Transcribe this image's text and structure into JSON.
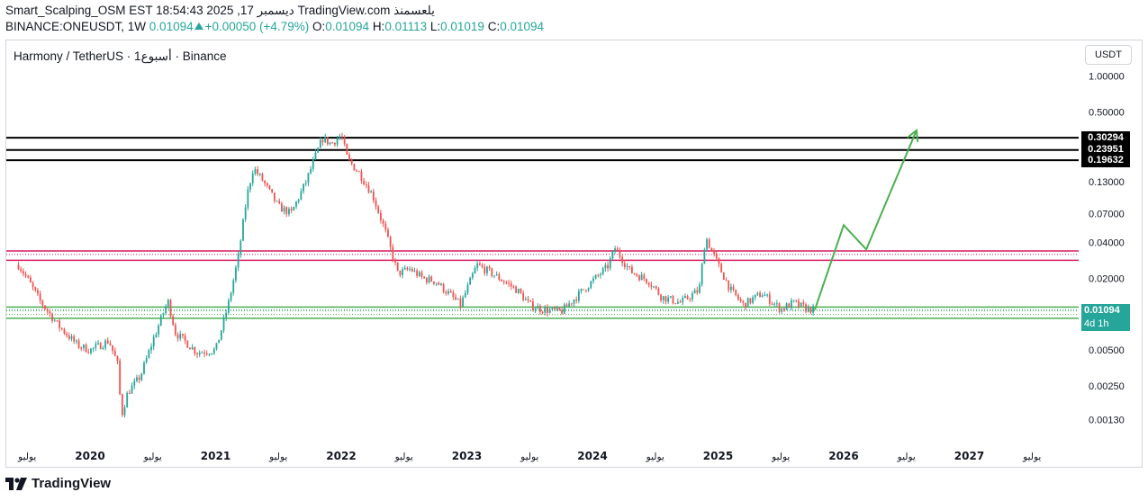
{
  "header": {
    "line1": "Smart_Scalping_OSM EST 18:54:43 2025 ,17 ديسمبر TradingView.com يلعسمنذ",
    "symbol": "BINANCE:ONEUSDT, 1W",
    "last": "0.01094",
    "change": "+0.00050 (+4.79%)",
    "o_label": "O:",
    "o_value": "0.01094",
    "h_label": "H:",
    "h_value": "0.01113",
    "l_label": "L:",
    "l_value": "0.01019",
    "c_label": "C:",
    "c_value": "0.01094"
  },
  "legend": "Harmony / TetherUS · 1أسبوع · Binance",
  "currency": "USDT",
  "brand": "TradingView",
  "colors": {
    "up": "#26a69a",
    "down": "#ef5350",
    "resistance": "#000000",
    "zone_red": "#d81b60",
    "zone_green": "#4caf50",
    "projection": "#4caf50"
  },
  "chart_data": {
    "type": "candlestick",
    "scale": "log",
    "ylim": [
      0.001,
      1.3
    ],
    "y_ticks": [
      "1.00000",
      "0.50000",
      "0.13000",
      "0.07000",
      "0.04000",
      "0.02000",
      "0.00500",
      "0.00250",
      "0.00130"
    ],
    "y_tick_values": [
      1.0,
      0.5,
      0.13,
      0.07,
      0.04,
      0.02,
      0.005,
      0.0025,
      0.0013
    ],
    "x_range": [
      "2019-06",
      "2027-12"
    ],
    "x_labels": [
      {
        "t": 2019.5,
        "label": "يوليو"
      },
      {
        "t": 2020.0,
        "label": "2020"
      },
      {
        "t": 2020.5,
        "label": "يوليو"
      },
      {
        "t": 2021.0,
        "label": "2021"
      },
      {
        "t": 2021.5,
        "label": "يوليو"
      },
      {
        "t": 2022.0,
        "label": "2022"
      },
      {
        "t": 2022.5,
        "label": "يوليو"
      },
      {
        "t": 2023.0,
        "label": "2023"
      },
      {
        "t": 2023.5,
        "label": "يوليو"
      },
      {
        "t": 2024.0,
        "label": "2024"
      },
      {
        "t": 2024.5,
        "label": "يوليو"
      },
      {
        "t": 2025.0,
        "label": "2025"
      },
      {
        "t": 2025.5,
        "label": "يوليو"
      },
      {
        "t": 2026.0,
        "label": "2026"
      },
      {
        "t": 2026.5,
        "label": "يوليو"
      },
      {
        "t": 2027.0,
        "label": "2027"
      },
      {
        "t": 2027.5,
        "label": "يوليو"
      }
    ],
    "price_path": [
      [
        2019.43,
        0.026
      ],
      [
        2019.5,
        0.02
      ],
      [
        2019.6,
        0.013
      ],
      [
        2019.75,
        0.008
      ],
      [
        2019.9,
        0.0055
      ],
      [
        2020.0,
        0.005
      ],
      [
        2020.15,
        0.006
      ],
      [
        2020.22,
        0.0038
      ],
      [
        2020.25,
        0.0014
      ],
      [
        2020.3,
        0.0022
      ],
      [
        2020.4,
        0.003
      ],
      [
        2020.5,
        0.006
      ],
      [
        2020.62,
        0.013
      ],
      [
        2020.68,
        0.007
      ],
      [
        2020.85,
        0.0048
      ],
      [
        2021.0,
        0.005
      ],
      [
        2021.1,
        0.012
      ],
      [
        2021.18,
        0.03
      ],
      [
        2021.25,
        0.1
      ],
      [
        2021.3,
        0.17
      ],
      [
        2021.38,
        0.13
      ],
      [
        2021.5,
        0.08
      ],
      [
        2021.6,
        0.07
      ],
      [
        2021.72,
        0.13
      ],
      [
        2021.8,
        0.22
      ],
      [
        2021.85,
        0.3
      ],
      [
        2021.92,
        0.27
      ],
      [
        2022.0,
        0.32
      ],
      [
        2022.05,
        0.2
      ],
      [
        2022.15,
        0.15
      ],
      [
        2022.25,
        0.1
      ],
      [
        2022.35,
        0.05
      ],
      [
        2022.45,
        0.022
      ],
      [
        2022.55,
        0.024
      ],
      [
        2022.65,
        0.02
      ],
      [
        2022.75,
        0.019
      ],
      [
        2022.95,
        0.012
      ],
      [
        2023.08,
        0.026
      ],
      [
        2023.2,
        0.022
      ],
      [
        2023.4,
        0.016
      ],
      [
        2023.5,
        0.012
      ],
      [
        2023.6,
        0.011
      ],
      [
        2023.75,
        0.0105
      ],
      [
        2023.9,
        0.015
      ],
      [
        2024.0,
        0.019
      ],
      [
        2024.12,
        0.025
      ],
      [
        2024.18,
        0.036
      ],
      [
        2024.3,
        0.023
      ],
      [
        2024.45,
        0.019
      ],
      [
        2024.55,
        0.014
      ],
      [
        2024.7,
        0.0125
      ],
      [
        2024.85,
        0.016
      ],
      [
        2024.9,
        0.045
      ],
      [
        2025.0,
        0.026
      ],
      [
        2025.1,
        0.016
      ],
      [
        2025.2,
        0.012
      ],
      [
        2025.35,
        0.015
      ],
      [
        2025.5,
        0.011
      ],
      [
        2025.6,
        0.0125
      ],
      [
        2025.7,
        0.0112
      ],
      [
        2025.76,
        0.01094
      ]
    ],
    "horizontal_levels": [
      {
        "value": "0.30294",
        "color": "#000000",
        "tagged": true
      },
      {
        "value": "0.23951",
        "color": "#000000",
        "tagged": true
      },
      {
        "value": "0.19632",
        "color": "#000000",
        "tagged": true
      },
      {
        "value": "0.0340",
        "color": "#d81b60",
        "tagged": false
      },
      {
        "value": "0.0284",
        "color": "#d81b60",
        "tagged": false
      },
      {
        "value": "0.0115",
        "color": "#4caf50",
        "tagged": false
      },
      {
        "value": "0.00925",
        "color": "#4caf50",
        "tagged": false
      }
    ],
    "current_price": {
      "value": "0.01094",
      "countdown": "4d 1h"
    },
    "projection": [
      [
        2025.77,
        0.0109
      ],
      [
        2026.0,
        0.056
      ],
      [
        2026.18,
        0.035
      ],
      [
        2026.58,
        0.35
      ]
    ]
  }
}
